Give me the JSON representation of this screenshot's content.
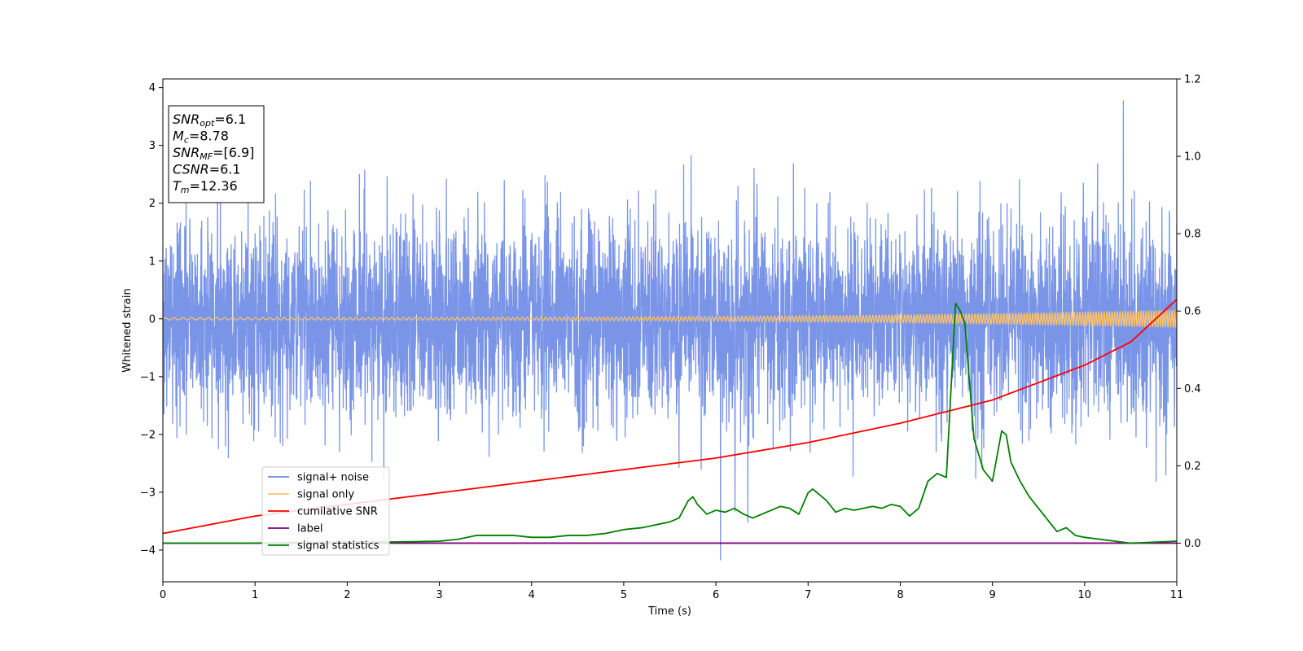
{
  "chart_data": {
    "type": "line",
    "title": "",
    "xlabel": "Time (s)",
    "ylabel": "Whitened strain",
    "xlim": [
      0,
      11
    ],
    "ylim_left": [
      -4.55,
      4.15
    ],
    "ylim_right": [
      -0.1,
      1.2
    ],
    "x_ticks": [
      0,
      1,
      2,
      3,
      4,
      5,
      6,
      7,
      8,
      9,
      10,
      11
    ],
    "x_tick_labels": [
      "0",
      "1",
      "2",
      "3",
      "4",
      "5",
      "6",
      "7",
      "8",
      "9",
      "10",
      "11"
    ],
    "y_left_ticks": [
      -4,
      -3,
      -2,
      -1,
      0,
      1,
      2,
      3,
      4
    ],
    "y_left_tick_labels": [
      "−4",
      "−3",
      "−2",
      "−1",
      "0",
      "1",
      "2",
      "3",
      "4"
    ],
    "y_right_ticks": [
      0.0,
      0.2,
      0.4,
      0.6,
      0.8,
      1.0,
      1.2
    ],
    "y_right_tick_labels": [
      "0.0",
      "0.2",
      "0.4",
      "0.6",
      "0.8",
      "1.0",
      "1.2"
    ],
    "grid": false,
    "legend_placement": "lower-left",
    "series": [
      {
        "name": "signal+ noise",
        "color": "#6c8ae4",
        "axis": "left",
        "kind": "noise",
        "noise_std": 1.0,
        "noise_range": [
          -4.17,
          3.77
        ]
      },
      {
        "name": "signal only",
        "color": "#ffc266",
        "axis": "left",
        "kind": "chirp",
        "amplitude_start": 0.02,
        "amplitude_end": 0.15
      },
      {
        "name": "cumilative SNR",
        "color": "#ff0000",
        "axis": "right",
        "kind": "curve",
        "x": [
          0,
          1,
          2,
          3,
          4,
          5,
          6,
          7,
          8,
          9,
          10,
          10.5,
          11
        ],
        "y": [
          0.025,
          0.07,
          0.1,
          0.13,
          0.16,
          0.19,
          0.22,
          0.26,
          0.31,
          0.37,
          0.46,
          0.52,
          0.63
        ]
      },
      {
        "name": "label",
        "color": "#800080",
        "axis": "right",
        "kind": "curve",
        "x": [
          0,
          11
        ],
        "y": [
          0.0,
          0.0
        ]
      },
      {
        "name": "signal statistics",
        "color": "#008000",
        "axis": "right",
        "kind": "curve",
        "x": [
          0,
          0.5,
          1,
          1.5,
          2,
          2.5,
          3,
          3.2,
          3.4,
          3.6,
          3.8,
          4.0,
          4.2,
          4.4,
          4.6,
          4.8,
          5.0,
          5.2,
          5.3,
          5.4,
          5.5,
          5.6,
          5.7,
          5.75,
          5.8,
          5.9,
          6.0,
          6.1,
          6.2,
          6.3,
          6.4,
          6.5,
          6.6,
          6.7,
          6.8,
          6.9,
          7.0,
          7.05,
          7.1,
          7.2,
          7.3,
          7.4,
          7.5,
          7.6,
          7.7,
          7.8,
          7.9,
          8.0,
          8.1,
          8.2,
          8.3,
          8.4,
          8.5,
          8.6,
          8.65,
          8.7,
          8.8,
          8.9,
          9.0,
          9.1,
          9.15,
          9.2,
          9.3,
          9.4,
          9.5,
          9.6,
          9.7,
          9.8,
          9.9,
          10.0,
          10.5,
          11
        ],
        "y": [
          0.0,
          0.0,
          0.0,
          0.002,
          0.003,
          0.003,
          0.005,
          0.01,
          0.02,
          0.02,
          0.02,
          0.015,
          0.015,
          0.02,
          0.02,
          0.025,
          0.035,
          0.04,
          0.045,
          0.05,
          0.055,
          0.065,
          0.11,
          0.12,
          0.1,
          0.075,
          0.085,
          0.08,
          0.09,
          0.075,
          0.065,
          0.075,
          0.085,
          0.095,
          0.09,
          0.075,
          0.13,
          0.14,
          0.13,
          0.11,
          0.08,
          0.09,
          0.085,
          0.09,
          0.095,
          0.09,
          0.1,
          0.095,
          0.07,
          0.09,
          0.16,
          0.18,
          0.17,
          0.62,
          0.6,
          0.57,
          0.27,
          0.19,
          0.16,
          0.29,
          0.28,
          0.21,
          0.16,
          0.12,
          0.09,
          0.06,
          0.03,
          0.04,
          0.02,
          0.015,
          0.0,
          0.005
        ]
      }
    ],
    "info_box": [
      {
        "base": "SNR",
        "sub": "opt",
        "rest": "=6.1"
      },
      {
        "base": "M",
        "sub": "c",
        "rest": "=8.78"
      },
      {
        "base": "SNR",
        "sub": "MF",
        "rest": "=[6.9]"
      },
      {
        "base": "CSNR",
        "sub": "",
        "rest": "=6.1"
      },
      {
        "base": "T",
        "sub": "m",
        "rest": "=12.36"
      }
    ]
  }
}
